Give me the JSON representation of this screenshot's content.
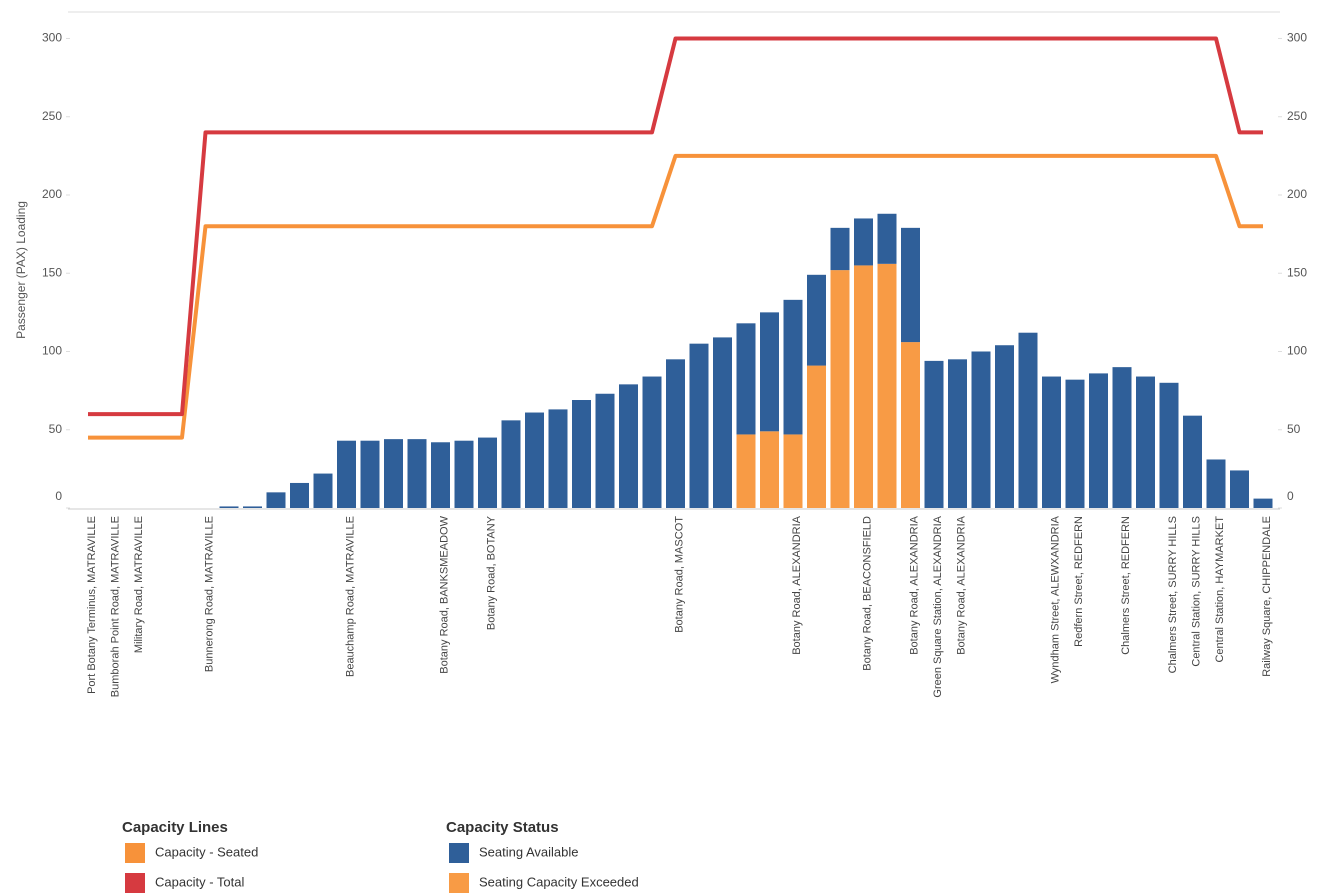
{
  "chart_data": {
    "type": "combo",
    "y_label": "Passenger (PAX) Loading",
    "categories": [
      "Port Botany Terminus, MATRAVILLE",
      "Bumborah Point Road, MATRAVILLE",
      "Military Road, MATRAVILLE",
      null,
      null,
      "Bunnerong Road, MATRAVILLE",
      null,
      null,
      null,
      null,
      null,
      "Beauchamp Road, MATRAVILLE",
      null,
      null,
      null,
      "Botany Road, BANKSMEADOW",
      null,
      "Botany Road, BOTANY",
      null,
      null,
      null,
      null,
      null,
      null,
      null,
      "Botany Road, MASCOT",
      null,
      null,
      null,
      null,
      "Botany Road, ALEXANDRIA",
      null,
      null,
      "Botany Road, BEACONSFIELD",
      null,
      "Botany Road, ALEXANDRIA",
      "Green Square Station, ALEXANDRIA",
      "Botany Road, ALEXANDRIA",
      null,
      null,
      null,
      "Wyndham Street, ALEWXANDRIA",
      "Redfern Street, REDFERN",
      null,
      "Chalmers Street, REDFERN",
      null,
      "Chalmers Street, SURRY HILLS",
      "Central Station, SURRY HILLS",
      "Central Station, HAYMARKET",
      null,
      "Railway Square, CHIPPENDALE"
    ],
    "series": [
      {
        "name": "Seating Available",
        "type": "bar",
        "color": "#2f5f99",
        "values": [
          null,
          null,
          null,
          null,
          null,
          null,
          1,
          1,
          10,
          16,
          22,
          43,
          43,
          44,
          44,
          42,
          43,
          45,
          56,
          61,
          63,
          69,
          73,
          79,
          84,
          95,
          105,
          109,
          71,
          76,
          86,
          58,
          27,
          30,
          32,
          73,
          94,
          95,
          100,
          104,
          112,
          84,
          82,
          86,
          90,
          84,
          80,
          59,
          31,
          24,
          6
        ]
      },
      {
        "name": "Seating Capacity Exceeded",
        "type": "bar",
        "color": "#f89b45",
        "values": [
          null,
          null,
          null,
          null,
          null,
          null,
          null,
          null,
          null,
          null,
          null,
          null,
          null,
          null,
          null,
          null,
          null,
          null,
          null,
          null,
          null,
          null,
          null,
          null,
          null,
          null,
          null,
          null,
          47,
          49,
          47,
          91,
          152,
          155,
          156,
          106,
          null,
          null,
          null,
          null,
          null,
          null,
          null,
          null,
          null,
          null,
          null,
          null,
          null,
          null,
          null
        ]
      },
      {
        "name": "Capacity - Seated",
        "type": "line",
        "color": "#f7923a",
        "values": [
          45,
          45,
          45,
          45,
          45,
          180,
          180,
          180,
          180,
          180,
          180,
          180,
          180,
          180,
          180,
          180,
          180,
          180,
          180,
          180,
          180,
          180,
          180,
          180,
          180,
          225,
          225,
          225,
          225,
          225,
          225,
          225,
          225,
          225,
          225,
          225,
          225,
          225,
          225,
          225,
          225,
          225,
          225,
          225,
          225,
          225,
          225,
          225,
          225,
          180,
          180
        ]
      },
      {
        "name": "Capacity - Total",
        "type": "line",
        "color": "#d63a40",
        "values": [
          60,
          60,
          60,
          60,
          60,
          240,
          240,
          240,
          240,
          240,
          240,
          240,
          240,
          240,
          240,
          240,
          240,
          240,
          240,
          240,
          240,
          240,
          240,
          240,
          240,
          300,
          300,
          300,
          300,
          300,
          300,
          300,
          300,
          300,
          300,
          300,
          300,
          300,
          300,
          300,
          300,
          300,
          300,
          300,
          300,
          300,
          300,
          300,
          300,
          240,
          240
        ]
      }
    ],
    "legend_groups": [
      {
        "title": "Capacity Lines",
        "series": [
          2,
          3
        ]
      },
      {
        "title": "Capacity Status",
        "series": [
          0,
          1
        ]
      }
    ],
    "ylim": [
      0,
      315
    ],
    "yticks": [
      0,
      50,
      100,
      150,
      200,
      250,
      300
    ],
    "y2lim": [
      0,
      315
    ],
    "y2ticks": [
      0,
      50,
      100,
      150,
      200,
      250,
      300
    ],
    "grid": false
  }
}
